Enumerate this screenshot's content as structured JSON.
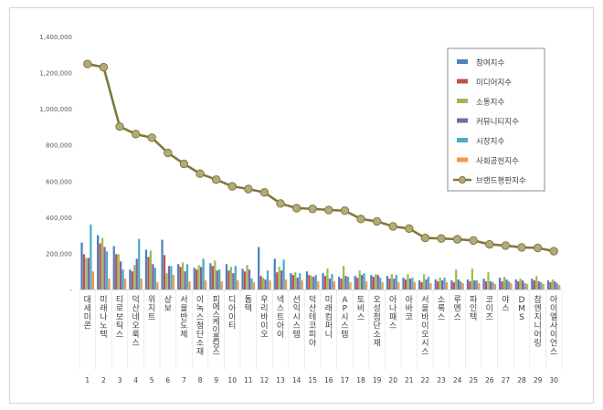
{
  "chart_data": {
    "type": "bar",
    "title": "",
    "xlabel": "",
    "ylabel": "",
    "ylim": [
      0,
      1400000
    ],
    "yticks": [
      0,
      200000,
      400000,
      600000,
      800000,
      1000000,
      1200000,
      1400000
    ],
    "ytick_labels": [
      "-",
      "200,000",
      "400,000",
      "600,000",
      "800,000",
      "1,000,000",
      "1,200,000",
      "1,400,000"
    ],
    "grid": false,
    "legend_position": "top-right",
    "categories": [
      "대세미콘",
      "미래나노텍",
      "티로보틱스",
      "덕산네오룩스",
      "위지트",
      "상보",
      "서울반도체",
      "이녹스첨단소재",
      "피에스케이홀딩스",
      "디아이티",
      "톱텍",
      "우리바이오",
      "넥스트아이",
      "선익시스템",
      "덕산테코피아",
      "미래컴퍼니",
      "AP시스템",
      "토비스",
      "오성첨단소재",
      "아나패스",
      "아바코",
      "서울바이오시스",
      "소룩스",
      "루멘스",
      "파인텍",
      "코이즈",
      "야스",
      "DMS",
      "참엔지니어링",
      "아이엘사이언스"
    ],
    "index_labels": [
      "1",
      "2",
      "3",
      "4",
      "5",
      "6",
      "7",
      "8",
      "9",
      "10",
      "11",
      "12",
      "13",
      "14",
      "15",
      "16",
      "17",
      "18",
      "19",
      "20",
      "21",
      "22",
      "23",
      "24",
      "25",
      "26",
      "27",
      "28",
      "29",
      "30"
    ],
    "series": [
      {
        "name": "참여지수",
        "kind": "bar",
        "color": "#4f81bd",
        "values": [
          260000,
          300000,
          240000,
          110000,
          220000,
          275000,
          140000,
          120000,
          145000,
          140000,
          115000,
          235000,
          170000,
          90000,
          100000,
          90000,
          70000,
          75000,
          80000,
          75000,
          65000,
          50000,
          55000,
          50000,
          55000,
          60000,
          65000,
          55000,
          60000,
          50000
        ]
      },
      {
        "name": "미디어지수",
        "kind": "bar",
        "color": "#c0504d",
        "values": [
          195000,
          255000,
          195000,
          100000,
          180000,
          190000,
          125000,
          110000,
          130000,
          105000,
          100000,
          75000,
          95000,
          80000,
          80000,
          75000,
          60000,
          65000,
          70000,
          60000,
          55000,
          40000,
          45000,
          40000,
          45000,
          45000,
          45000,
          45000,
          50000,
          40000
        ]
      },
      {
        "name": "소통지수",
        "kind": "bar",
        "color": "#9bbb59",
        "values": [
          175000,
          285000,
          195000,
          135000,
          215000,
          90000,
          150000,
          135000,
          160000,
          125000,
          135000,
          65000,
          125000,
          95000,
          75000,
          115000,
          130000,
          105000,
          85000,
          85000,
          85000,
          85000,
          65000,
          110000,
          115000,
          95000,
          70000,
          60000,
          75000,
          55000
        ]
      },
      {
        "name": "커뮤니티지수",
        "kind": "bar",
        "color": "#8064a2",
        "values": [
          175000,
          235000,
          155000,
          170000,
          140000,
          130000,
          100000,
          125000,
          105000,
          90000,
          110000,
          55000,
          105000,
          65000,
          70000,
          60000,
          75000,
          80000,
          80000,
          60000,
          60000,
          55000,
          50000,
          55000,
          50000,
          45000,
          55000,
          50000,
          45000,
          45000
        ]
      },
      {
        "name": "시장지수",
        "kind": "bar",
        "color": "#4bacc6",
        "values": [
          360000,
          210000,
          110000,
          280000,
          120000,
          130000,
          140000,
          170000,
          110000,
          130000,
          60000,
          105000,
          165000,
          90000,
          80000,
          85000,
          70000,
          90000,
          65000,
          80000,
          65000,
          70000,
          65000,
          45000,
          50000,
          40000,
          45000,
          35000,
          40000,
          35000
        ]
      },
      {
        "name": "사회공헌지수",
        "kind": "bar",
        "color": "#f79646",
        "values": [
          100000,
          60000,
          60000,
          60000,
          40000,
          80000,
          45000,
          50000,
          45000,
          50000,
          40000,
          50000,
          55000,
          50000,
          45000,
          45000,
          40000,
          45000,
          40000,
          40000,
          40000,
          35000,
          40000,
          35000,
          35000,
          30000,
          35000,
          30000,
          30000,
          25000
        ]
      },
      {
        "name": "브랜드평판지수",
        "kind": "line",
        "color": "#7f7a3c",
        "marker_color": "#b5a87a",
        "values": [
          1248000,
          1230000,
          902000,
          860000,
          840000,
          756000,
          695000,
          641000,
          608000,
          571000,
          556000,
          537000,
          476000,
          450000,
          446000,
          440000,
          436000,
          390000,
          377000,
          349000,
          337000,
          285000,
          282000,
          278000,
          271000,
          250000,
          243000,
          233000,
          230000,
          212000
        ]
      }
    ]
  }
}
